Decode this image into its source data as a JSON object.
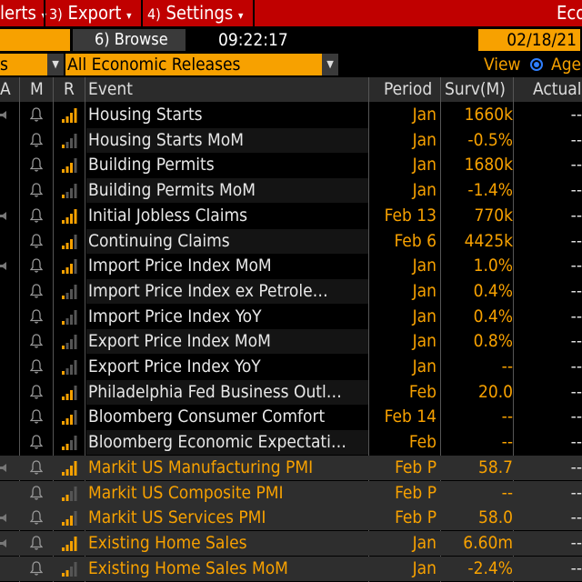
{
  "menu": {
    "items": [
      {
        "num": "",
        "label": "lerts",
        "caret": "▾"
      },
      {
        "num": "3)",
        "label": "Export",
        "caret": "▾"
      },
      {
        "num": "4)",
        "label": "Settings",
        "caret": "▾"
      }
    ],
    "right_title": "Eco"
  },
  "toolbar": {
    "browse_label": "6) Browse",
    "time": "09:22:17",
    "date": "02/18/21"
  },
  "filter": {
    "left_value": "s",
    "releases_value": "All Economic Releases",
    "view_label": "View",
    "view_option": "Age"
  },
  "columns": {
    "a": "A",
    "m": "M",
    "r": "R",
    "event": "Event",
    "period": "Period",
    "surv": "Surv(M)",
    "actual": "Actual"
  },
  "colors": {
    "menu_bg": "#c00000",
    "accent_orange": "#f7a100",
    "radio_blue": "#2f7fff"
  },
  "rows": [
    {
      "event": "Housing Starts",
      "period": "Jan",
      "surv": "1660k",
      "actual": "--",
      "speaker": true,
      "relevance": 4,
      "upcoming": false
    },
    {
      "event": "Housing Starts MoM",
      "period": "Jan",
      "surv": "-0.5%",
      "actual": "--",
      "speaker": false,
      "relevance": 1,
      "upcoming": false
    },
    {
      "event": "Building Permits",
      "period": "Jan",
      "surv": "1680k",
      "actual": "--",
      "speaker": false,
      "relevance": 3,
      "upcoming": false
    },
    {
      "event": "Building Permits MoM",
      "period": "Jan",
      "surv": "-1.4%",
      "actual": "--",
      "speaker": false,
      "relevance": 1,
      "upcoming": false
    },
    {
      "event": "Initial Jobless Claims",
      "period": "Feb 13",
      "surv": "770k",
      "actual": "--",
      "speaker": true,
      "relevance": 4,
      "upcoming": false
    },
    {
      "event": "Continuing Claims",
      "period": "Feb 6",
      "surv": "4425k",
      "actual": "--",
      "speaker": false,
      "relevance": 3,
      "upcoming": false
    },
    {
      "event": "Import Price Index MoM",
      "period": "Jan",
      "surv": "1.0%",
      "actual": "--",
      "speaker": true,
      "relevance": 3,
      "upcoming": false
    },
    {
      "event": "Import Price Index ex Petrole…",
      "period": "Jan",
      "surv": "0.4%",
      "actual": "--",
      "speaker": false,
      "relevance": 1,
      "upcoming": false
    },
    {
      "event": "Import Price Index YoY",
      "period": "Jan",
      "surv": "0.4%",
      "actual": "--",
      "speaker": false,
      "relevance": 1,
      "upcoming": false
    },
    {
      "event": "Export Price Index MoM",
      "period": "Jan",
      "surv": "0.8%",
      "actual": "--",
      "speaker": false,
      "relevance": 1,
      "upcoming": false
    },
    {
      "event": "Export Price Index YoY",
      "period": "Jan",
      "surv": "--",
      "actual": "--",
      "speaker": false,
      "relevance": 1,
      "upcoming": false
    },
    {
      "event": "Philadelphia Fed Business Outl…",
      "period": "Feb",
      "surv": "20.0",
      "actual": "--",
      "speaker": false,
      "relevance": 3,
      "upcoming": false
    },
    {
      "event": "Bloomberg Consumer Comfort",
      "period": "Feb 14",
      "surv": "--",
      "actual": "--",
      "speaker": false,
      "relevance": 3,
      "upcoming": false
    },
    {
      "event": "Bloomberg Economic Expectati…",
      "period": "Feb",
      "surv": "--",
      "actual": "--",
      "speaker": false,
      "relevance": 2,
      "upcoming": false
    },
    {
      "event": "Markit US Manufacturing PMI",
      "period": "Feb P",
      "surv": "58.7",
      "actual": "--",
      "speaker": true,
      "relevance": 4,
      "upcoming": true
    },
    {
      "event": "Markit US Composite PMI",
      "period": "Feb P",
      "surv": "--",
      "actual": "--",
      "speaker": false,
      "relevance": 2,
      "upcoming": true
    },
    {
      "event": "Markit US Services PMI",
      "period": "Feb P",
      "surv": "58.0",
      "actual": "--",
      "speaker": true,
      "relevance": 3,
      "upcoming": true
    },
    {
      "event": "Existing Home Sales",
      "period": "Jan",
      "surv": "6.60m",
      "actual": "--",
      "speaker": true,
      "relevance": 4,
      "upcoming": true
    },
    {
      "event": "Existing Home Sales MoM",
      "period": "Jan",
      "surv": "-2.4%",
      "actual": "--",
      "speaker": false,
      "relevance": 2,
      "upcoming": true
    }
  ]
}
